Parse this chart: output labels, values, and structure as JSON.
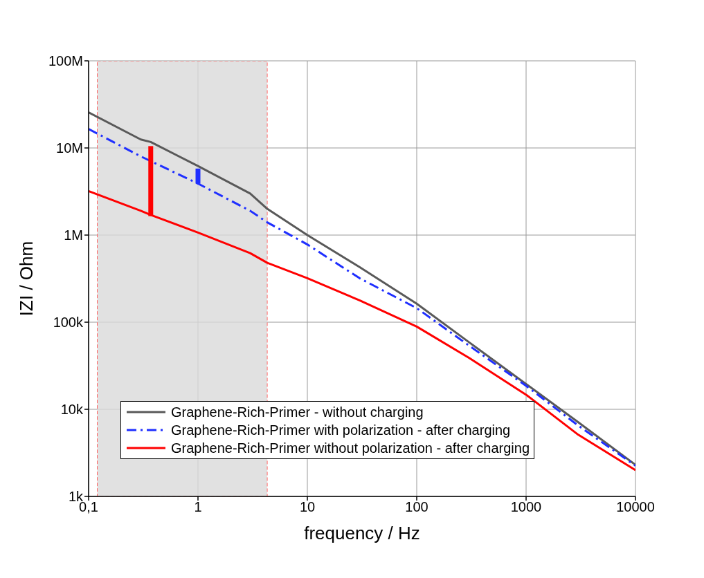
{
  "chart_data": {
    "type": "line",
    "xlabel": "frequency / Hz",
    "ylabel": "IZI / Ohm",
    "log": "xy",
    "grid": true,
    "legend": "bottom left",
    "xlim": [
      0.1,
      10000
    ],
    "xticks": [
      {
        "value": 0.1,
        "label": "0,1"
      },
      1,
      10,
      100,
      1000,
      10000
    ],
    "ylim": [
      1000,
      100000000
    ],
    "yticks": [
      {
        "value": 1000,
        "label": "1k"
      },
      {
        "value": 10000,
        "label": "10k"
      },
      {
        "value": 100000,
        "label": "100k"
      },
      {
        "value": 1000000,
        "label": "1M"
      },
      {
        "value": 10000000,
        "label": "10M"
      },
      {
        "value": 100000000,
        "label": "100M"
      }
    ],
    "bands": [
      {
        "axis": "x",
        "from": 0.12,
        "to": 4.3,
        "color": "#d9d9d9"
      }
    ],
    "series": [
      {
        "name": "Graphene-Rich-Primer - without charging",
        "color": "#595959",
        "line_style": "solid",
        "x": [
          0.1,
          0.3,
          0.37,
          1,
          3,
          4.3,
          10,
          30,
          100,
          300,
          1000,
          3000,
          10000
        ],
        "values": [
          25600000,
          12500000,
          11700000,
          6200000,
          3000000,
          2000000,
          1000000,
          430000,
          163000,
          59000,
          19500,
          7100,
          2300
        ]
      },
      {
        "name": "Graphene-Rich-Primer with polarization - after charging",
        "color": "#1f2fff",
        "line_style": "dashdot",
        "x": [
          0.1,
          0.3,
          1,
          3,
          4.3,
          10,
          30,
          100,
          300,
          1000,
          3000,
          10000
        ],
        "values": [
          16500000,
          8000000,
          3900000,
          1900000,
          1400000,
          780000,
          320000,
          145000,
          54000,
          18600,
          6500,
          2250
        ]
      },
      {
        "name": "Graphene-Rich-Primer without polarization - after charging",
        "color": "#ff0000",
        "line_style": "solid",
        "x": [
          0.1,
          0.3,
          0.37,
          1,
          3,
          4.3,
          10,
          30,
          100,
          300,
          1000,
          3000,
          10000
        ],
        "values": [
          3200000,
          1900000,
          1700000,
          1070000,
          620000,
          480000,
          320000,
          178000,
          89000,
          39000,
          14700,
          5100,
          2000
        ]
      },
      {
        "color": "#ff0000",
        "line_style": "solid",
        "x": [
          0.37,
          0.37
        ],
        "values": [
          1650000,
          10500000
        ]
      },
      {
        "color": "#1f2fff",
        "line_style": "solid",
        "x": [
          1,
          1
        ],
        "values": [
          3900000,
          5800000
        ]
      }
    ]
  }
}
